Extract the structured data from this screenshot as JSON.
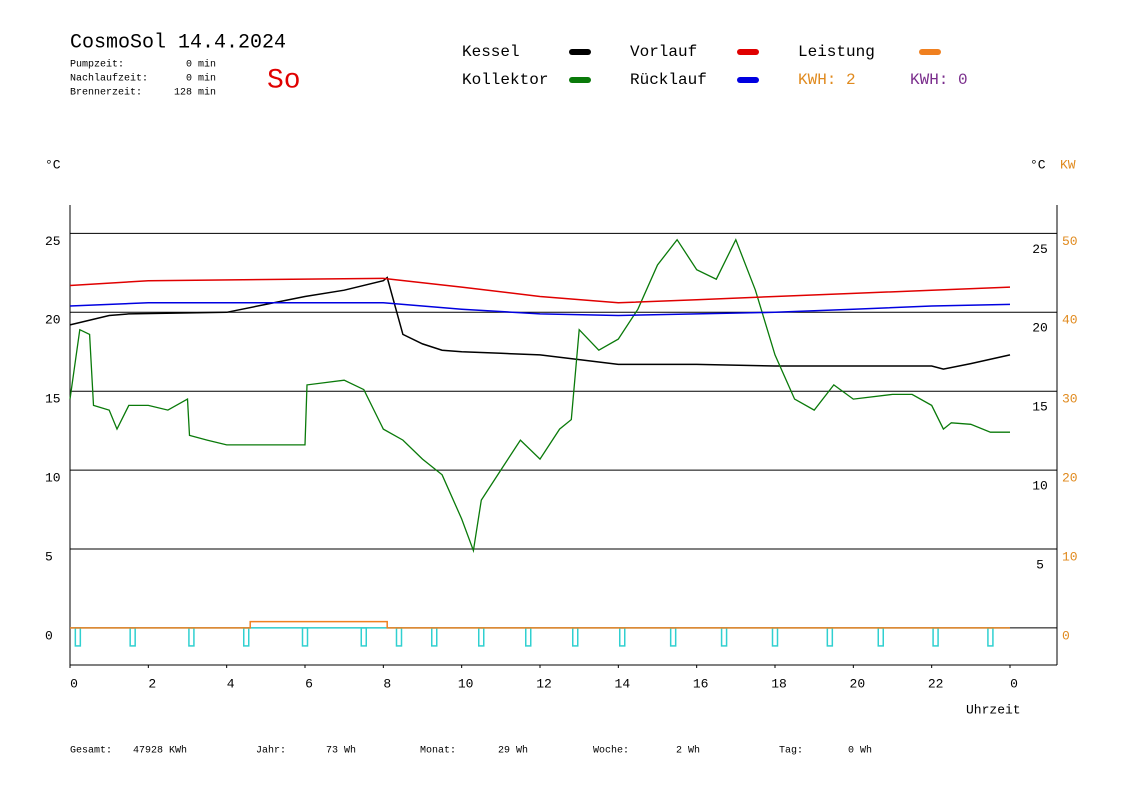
{
  "header": {
    "title": "CosmoSol 14.4.2024",
    "stats": [
      {
        "label": "Pumpzeit:",
        "value": "0 min"
      },
      {
        "label": "Nachlaufzeit:",
        "value": "0 min"
      },
      {
        "label": "Brennerzeit:",
        "value": "128 min"
      }
    ],
    "day": "So",
    "kwh": [
      "KWH: 2",
      "KWH: 0"
    ]
  },
  "footer": [
    {
      "label": "Gesamt:",
      "value": "47928 KWh"
    },
    {
      "label": "Jahr:",
      "value": "73 Wh"
    },
    {
      "label": "Monat:",
      "value": "29 Wh"
    },
    {
      "label": "Woche:",
      "value": "2 Wh"
    },
    {
      "label": "Tag:",
      "value": "0 Wh"
    }
  ],
  "chart_data": {
    "type": "line",
    "grid": true,
    "ylabel": "°C",
    "ylabel_right": "°C",
    "y2label": "KW",
    "xlabel": "Uhrzeit",
    "xlim": [
      0,
      25.2
    ],
    "xticks": [
      0,
      2,
      4,
      6,
      8,
      10,
      12,
      14,
      16,
      18,
      20,
      22,
      {
        "value": 24,
        "label": "0"
      }
    ],
    "ylim": [
      -2.35,
      26.8
    ],
    "yticks": [
      0,
      5,
      10,
      15,
      20,
      25
    ],
    "yticks_right": [
      5,
      10,
      15,
      20,
      25
    ],
    "y2lim": [
      -4.7,
      53.6
    ],
    "y2ticks": [
      0,
      10,
      20,
      30,
      40,
      50
    ],
    "series": [
      {
        "name": "Kessel",
        "color": "#000000",
        "x": [
          0,
          1,
          1.5,
          4,
          5,
          6,
          7,
          8,
          8.1,
          8.5,
          9,
          9.5,
          10,
          11,
          12,
          13,
          14,
          16,
          18,
          20,
          22,
          22.3,
          23,
          24
        ],
        "values": [
          19.2,
          19.8,
          19.9,
          20.0,
          20.5,
          21.0,
          21.4,
          22.0,
          22.2,
          18.6,
          18.0,
          17.6,
          17.5,
          17.4,
          17.3,
          17.0,
          16.7,
          16.7,
          16.6,
          16.6,
          16.6,
          16.4,
          16.75,
          17.3
        ]
      },
      {
        "name": "Kollektor",
        "color": "#0a7a0a",
        "x": [
          0,
          0.25,
          0.5,
          0.6,
          1,
          1.2,
          1.5,
          2,
          2.5,
          3,
          3.05,
          3.5,
          4,
          5,
          6,
          6.05,
          7,
          7.5,
          8,
          8.5,
          9,
          9.5,
          10,
          10.3,
          10.5,
          11,
          11.5,
          12,
          12.5,
          12.8,
          13,
          13.5,
          14,
          14.5,
          15,
          15.5,
          16,
          16.5,
          17,
          17.5,
          18,
          18.5,
          19,
          19.5,
          20,
          21,
          21.5,
          22,
          22.3,
          22.5,
          23,
          23.5,
          24
        ],
        "values": [
          14.5,
          18.9,
          18.6,
          14.1,
          13.8,
          12.6,
          14.1,
          14.1,
          13.8,
          14.5,
          12.2,
          11.9,
          11.6,
          11.6,
          11.6,
          15.4,
          15.7,
          15.1,
          12.6,
          11.9,
          10.7,
          9.7,
          6.9,
          4.9,
          8.1,
          10.0,
          11.9,
          10.7,
          12.6,
          13.2,
          18.9,
          17.6,
          18.3,
          20.2,
          23.0,
          24.6,
          22.7,
          22.1,
          24.6,
          21.4,
          17.3,
          14.5,
          13.8,
          15.4,
          14.5,
          14.8,
          14.8,
          14.1,
          12.6,
          13.0,
          12.9,
          12.4,
          12.4
        ]
      },
      {
        "name": "Vorlauf",
        "color": "#e00000",
        "x": [
          0,
          2,
          8,
          10,
          12,
          14,
          16,
          18,
          20,
          22,
          24
        ],
        "values": [
          21.7,
          22.0,
          22.15,
          21.6,
          21.0,
          20.6,
          20.8,
          21.0,
          21.2,
          21.4,
          21.6
        ]
      },
      {
        "name": "Rücklauf",
        "color": "#0000e0",
        "x": [
          0,
          2,
          8,
          9,
          10,
          12,
          14,
          16,
          18,
          20,
          22,
          24
        ],
        "values": [
          20.4,
          20.6,
          20.6,
          20.4,
          20.2,
          19.9,
          19.8,
          19.9,
          20.0,
          20.2,
          20.4,
          20.5
        ]
      },
      {
        "name": "Leistung",
        "color": "#f08020",
        "axis": "y2",
        "x": [
          0,
          4.6,
          4.6,
          8.1,
          8.1,
          24
        ],
        "values": [
          0,
          0,
          0.8,
          0.8,
          0,
          0
        ]
      }
    ],
    "pump_pulses": [
      0.2,
      1.6,
      3.1,
      4.5,
      6.0,
      7.5,
      8.4,
      9.3,
      10.5,
      11.7,
      12.9,
      14.1,
      15.4,
      16.7,
      18.0,
      19.4,
      20.7,
      22.1,
      23.5
    ],
    "pump_color": "#30d0d0"
  }
}
